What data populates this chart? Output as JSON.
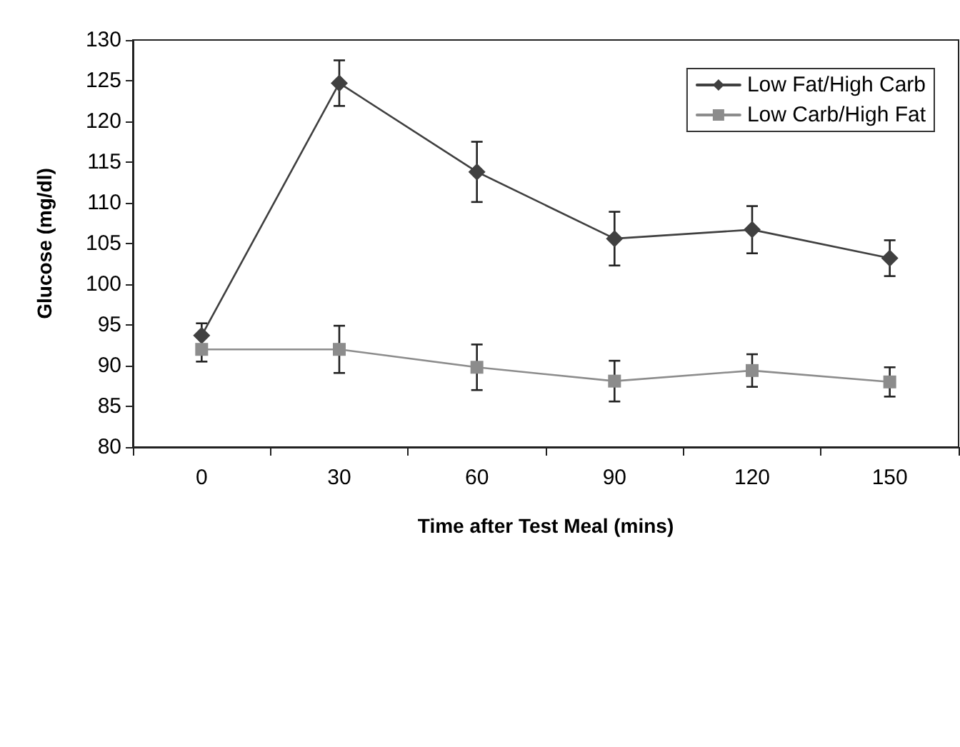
{
  "chart_data": {
    "type": "line",
    "xlabel": "Time after Test Meal (mins)",
    "ylabel": "Glucose (mg/dl)",
    "categories": [
      "0",
      "30",
      "60",
      "90",
      "120",
      "150"
    ],
    "series": [
      {
        "name": "Low Fat/High Carb",
        "color": "#404040",
        "marker": "diamond",
        "values": [
          93.7,
          124.7,
          113.8,
          105.6,
          106.7,
          103.2
        ],
        "errors": [
          1.5,
          2.8,
          3.7,
          3.3,
          2.9,
          2.2
        ]
      },
      {
        "name": "Low Carb/High Fat",
        "color": "#8c8c8c",
        "marker": "square",
        "values": [
          92,
          92,
          89.8,
          88.1,
          89.4,
          88
        ],
        "errors": [
          1.5,
          2.9,
          2.8,
          2.5,
          2,
          1.8
        ]
      }
    ],
    "ylim": [
      80,
      130
    ],
    "yticks": [
      80,
      85,
      90,
      95,
      100,
      105,
      110,
      115,
      120,
      125,
      130
    ],
    "grid": false,
    "legend": "top right",
    "line_style": "solid"
  }
}
